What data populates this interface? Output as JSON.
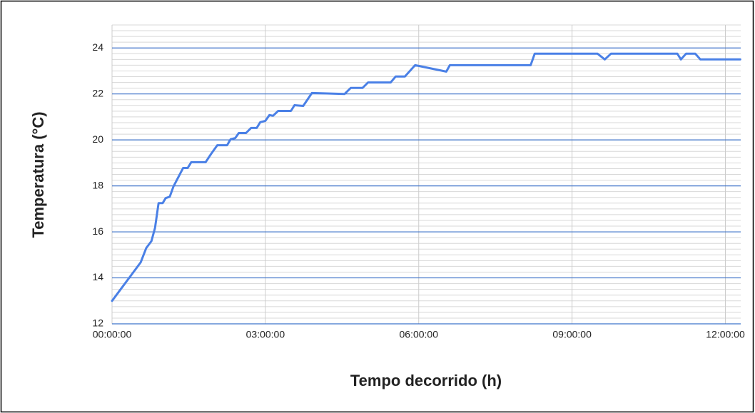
{
  "chart_data": {
    "type": "line",
    "x_label": "Tempo decorrido (h)",
    "y_label": "Temperatura (°C)",
    "x": [
      0,
      0.56,
      0.67,
      0.77,
      0.84,
      0.91,
      0.99,
      1.05,
      1.13,
      1.2,
      1.39,
      1.48,
      1.55,
      1.83,
      1.94,
      2.06,
      2.25,
      2.32,
      2.41,
      2.48,
      2.62,
      2.72,
      2.83,
      2.9,
      3.0,
      3.08,
      3.15,
      3.25,
      3.5,
      3.57,
      3.74,
      3.91,
      4.55,
      4.67,
      4.9,
      5.01,
      5.45,
      5.55,
      5.73,
      5.93,
      6.54,
      6.61,
      8.19,
      8.27,
      9.5,
      9.64,
      9.76,
      11.06,
      11.13,
      11.23,
      11.41,
      11.51,
      12.29
    ],
    "values": [
      13.0,
      14.67,
      15.3,
      15.6,
      16.17,
      17.25,
      17.25,
      17.47,
      17.53,
      17.97,
      18.78,
      18.78,
      19.03,
      19.03,
      19.4,
      19.77,
      19.77,
      20.03,
      20.08,
      20.3,
      20.3,
      20.52,
      20.52,
      20.77,
      20.83,
      21.08,
      21.05,
      21.26,
      21.26,
      21.51,
      21.48,
      22.04,
      22.0,
      22.26,
      22.26,
      22.5,
      22.5,
      22.76,
      22.76,
      23.25,
      22.97,
      23.25,
      23.25,
      23.75,
      23.75,
      23.5,
      23.75,
      23.75,
      23.5,
      23.75,
      23.75,
      23.5,
      23.5
    ],
    "color": "#4a80e6",
    "xlim": [
      0,
      12.3
    ],
    "xticks": [
      {
        "value": 0,
        "label": "00:00:00"
      },
      {
        "value": 3,
        "label": "03:00:00"
      },
      {
        "value": 6,
        "label": "06:00:00"
      },
      {
        "value": 9,
        "label": "09:00:00"
      },
      {
        "value": 12,
        "label": "12:00:00"
      }
    ],
    "ylim": [
      12,
      25
    ],
    "yticks": [
      12,
      14,
      16,
      18,
      20,
      22,
      24
    ],
    "minor_grid_step": 0.25,
    "grid": true,
    "grid_color": "#3f73c9"
  }
}
